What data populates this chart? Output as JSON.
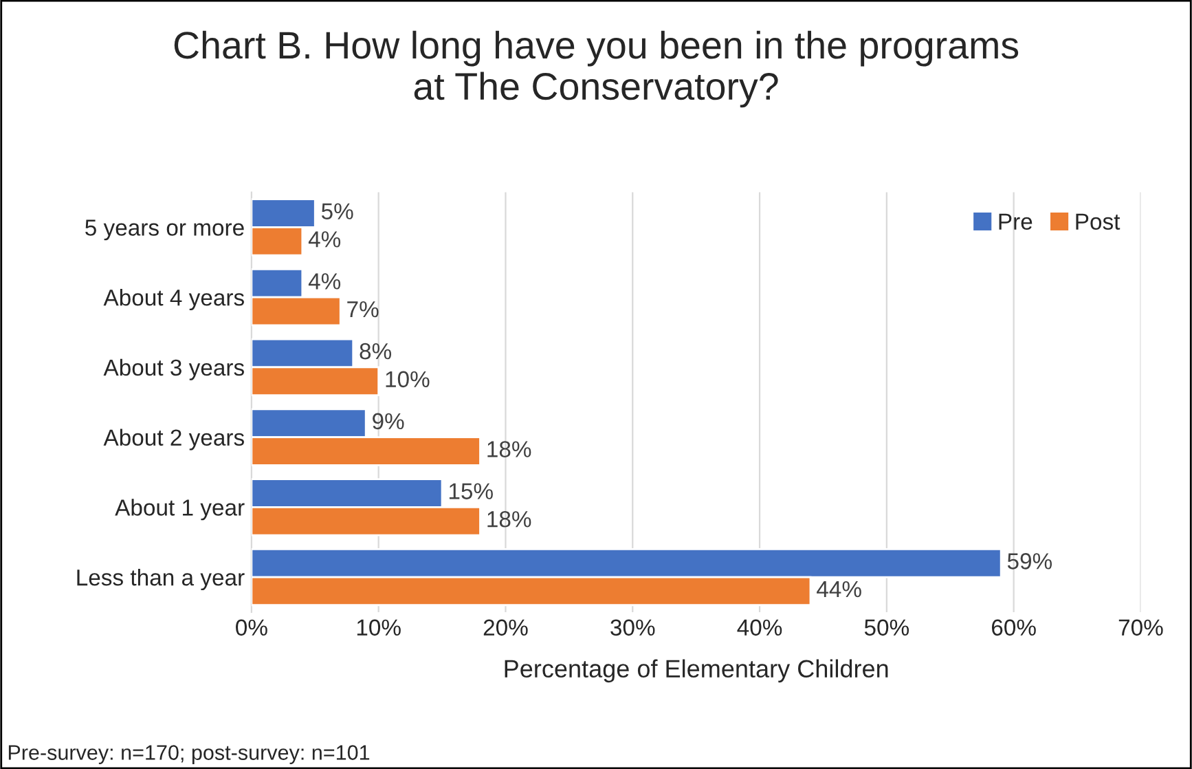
{
  "chart_data": {
    "type": "bar",
    "orientation": "horizontal",
    "title": "Chart B. How long have you been in the programs\nat The Conservatory?",
    "xlabel": "Percentage of Elementary Children",
    "categories": [
      "5 years or more",
      "About 4 years",
      "About 3 years",
      "About 2 years",
      "About 1 year",
      "Less than a year"
    ],
    "series": [
      {
        "name": "Pre",
        "color": "#4472c4",
        "values": [
          5,
          4,
          8,
          9,
          15,
          59
        ],
        "value_labels": [
          "5%",
          "4%",
          "8%",
          "9%",
          "15%",
          "59%"
        ]
      },
      {
        "name": "Post",
        "color": "#ed7d31",
        "values": [
          4,
          7,
          10,
          18,
          18,
          44
        ],
        "value_labels": [
          "4%",
          "7%",
          "10%",
          "18%",
          "18%",
          "44%"
        ]
      }
    ],
    "xlim": [
      0,
      70
    ],
    "xticks": [
      {
        "value": 0,
        "label": "0%"
      },
      {
        "value": 10,
        "label": "10%"
      },
      {
        "value": 20,
        "label": "20%"
      },
      {
        "value": 30,
        "label": "30%"
      },
      {
        "value": 40,
        "label": "40%"
      },
      {
        "value": 50,
        "label": "50%"
      },
      {
        "value": 60,
        "label": "60%"
      },
      {
        "value": 70,
        "label": "70%"
      }
    ],
    "grid": "x",
    "legend": "top right",
    "annotations": [
      "Pre-survey: n=170; post-survey: n=101"
    ]
  }
}
